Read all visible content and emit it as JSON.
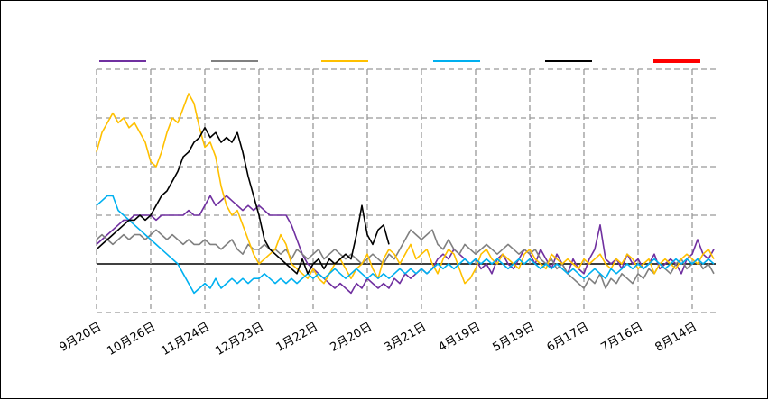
{
  "chart_data": {
    "type": "line",
    "categories": [
      "9月20日",
      null,
      null,
      null,
      null,
      null,
      null,
      null,
      null,
      null,
      "10月26日",
      null,
      null,
      null,
      null,
      null,
      null,
      null,
      null,
      null,
      "11月24日",
      null,
      null,
      null,
      null,
      null,
      null,
      null,
      null,
      null,
      "12月23日",
      null,
      null,
      null,
      null,
      null,
      null,
      null,
      null,
      null,
      "1月22日",
      null,
      null,
      null,
      null,
      null,
      null,
      null,
      null,
      null,
      "2月20日",
      null,
      null,
      null,
      null,
      null,
      null,
      null,
      null,
      null,
      "3月21日",
      null,
      null,
      null,
      null,
      null,
      null,
      null,
      null,
      null,
      "4月19日",
      null,
      null,
      null,
      null,
      null,
      null,
      null,
      null,
      null,
      "5月19日",
      null,
      null,
      null,
      null,
      null,
      null,
      null,
      null,
      null,
      "6月17日",
      null,
      null,
      null,
      null,
      null,
      null,
      null,
      null,
      null,
      "7月16日",
      null,
      null,
      null,
      null,
      null,
      null,
      null,
      null,
      null,
      "8月14日",
      null,
      null,
      null,
      null
    ],
    "series": [
      {
        "color": "#7030a0",
        "values": [
          0.4,
          0.5,
          0.6,
          0.7,
          0.8,
          0.9,
          0.9,
          1.0,
          1.0,
          1.0,
          1.0,
          0.9,
          1.0,
          1.0,
          1.0,
          1.0,
          1.0,
          1.1,
          1.0,
          1.0,
          1.2,
          1.4,
          1.2,
          1.3,
          1.4,
          1.3,
          1.2,
          1.1,
          1.2,
          1.1,
          1.2,
          1.1,
          1.0,
          1.0,
          1.0,
          1.0,
          0.8,
          0.5,
          0.2,
          0.0,
          -0.1,
          -0.2,
          -0.3,
          -0.4,
          -0.5,
          -0.4,
          -0.5,
          -0.6,
          -0.4,
          -0.5,
          -0.3,
          -0.4,
          -0.5,
          -0.4,
          -0.5,
          -0.3,
          -0.4,
          -0.2,
          -0.3,
          -0.2,
          -0.1,
          -0.2,
          -0.1,
          0.1,
          0.2,
          0.1,
          0.3,
          0.2,
          0.1,
          0.0,
          0.1,
          -0.1,
          0.0,
          -0.2,
          0.1,
          0.2,
          0.0,
          -0.1,
          0.1,
          0.3,
          0.2,
          0.0,
          0.3,
          0.1,
          -0.1,
          0.2,
          0.0,
          -0.2,
          0.1,
          -0.1,
          -0.2,
          0.1,
          0.3,
          0.8,
          0.1,
          0.0,
          0.1,
          -0.1,
          0.2,
          0.0,
          0.1,
          -0.1,
          0.0,
          0.2,
          -0.1,
          0.0,
          0.1,
          0.0,
          -0.2,
          0.1,
          0.2,
          0.5,
          0.2,
          0.1,
          0.3
        ]
      },
      {
        "color": "#808080",
        "values": [
          0.5,
          0.6,
          0.5,
          0.4,
          0.5,
          0.6,
          0.5,
          0.6,
          0.6,
          0.5,
          0.6,
          0.7,
          0.6,
          0.5,
          0.6,
          0.5,
          0.4,
          0.5,
          0.4,
          0.4,
          0.5,
          0.4,
          0.4,
          0.3,
          0.4,
          0.5,
          0.3,
          0.2,
          0.4,
          0.3,
          0.3,
          0.4,
          0.3,
          0.3,
          0.2,
          0.3,
          0.1,
          0.3,
          0.2,
          0.1,
          0.2,
          0.3,
          0.1,
          0.2,
          0.3,
          0.2,
          0.1,
          0.2,
          0.1,
          0.0,
          0.1,
          0.2,
          0.1,
          0.0,
          0.2,
          0.1,
          0.3,
          0.5,
          0.7,
          0.6,
          0.5,
          0.6,
          0.7,
          0.4,
          0.3,
          0.5,
          0.3,
          0.2,
          0.4,
          0.3,
          0.2,
          0.3,
          0.4,
          0.3,
          0.2,
          0.3,
          0.4,
          0.3,
          0.2,
          0.3,
          0.2,
          0.3,
          0.1,
          0.0,
          0.1,
          -0.1,
          0.0,
          -0.2,
          -0.3,
          -0.4,
          -0.5,
          -0.3,
          -0.4,
          -0.2,
          -0.5,
          -0.3,
          -0.4,
          -0.2,
          -0.3,
          -0.4,
          -0.2,
          -0.3,
          -0.1,
          -0.2,
          0.0,
          -0.1,
          -0.2,
          0.0,
          0.1,
          -0.1,
          0.0,
          0.1,
          -0.1,
          0.0,
          -0.2
        ]
      },
      {
        "color": "#ffc000",
        "values": [
          2.3,
          2.7,
          2.9,
          3.1,
          2.9,
          3.0,
          2.8,
          2.9,
          2.7,
          2.5,
          2.1,
          2.0,
          2.3,
          2.7,
          3.0,
          2.9,
          3.2,
          3.5,
          3.3,
          2.8,
          2.4,
          2.5,
          2.2,
          1.6,
          1.2,
          1.0,
          1.1,
          0.8,
          0.5,
          0.2,
          0.0,
          0.1,
          0.2,
          0.3,
          0.6,
          0.4,
          0.0,
          -0.1,
          -0.2,
          -0.3,
          -0.1,
          -0.3,
          -0.4,
          -0.2,
          0.0,
          0.1,
          -0.1,
          -0.3,
          -0.1,
          0.0,
          0.2,
          -0.1,
          -0.3,
          0.1,
          0.3,
          0.2,
          0.0,
          0.2,
          0.4,
          0.1,
          0.2,
          0.3,
          0.0,
          -0.2,
          0.1,
          0.3,
          0.2,
          -0.1,
          -0.4,
          -0.3,
          -0.1,
          0.2,
          0.3,
          0.1,
          0.0,
          0.2,
          0.1,
          0.0,
          -0.1,
          0.2,
          0.3,
          0.1,
          0.0,
          -0.1,
          0.2,
          0.1,
          0.0,
          0.1,
          0.0,
          -0.1,
          0.1,
          0.0,
          0.1,
          0.2,
          0.0,
          -0.1,
          0.1,
          0.0,
          0.2,
          0.1,
          -0.1,
          0.0,
          0.1,
          -0.2,
          0.0,
          0.1,
          0.0,
          -0.1,
          0.1,
          0.2,
          0.1,
          0.0,
          0.2,
          0.3,
          0.1
        ]
      },
      {
        "color": "#00b0f0",
        "values": [
          1.2,
          1.3,
          1.4,
          1.4,
          1.1,
          1.0,
          0.9,
          0.8,
          0.7,
          0.6,
          0.5,
          0.4,
          0.3,
          0.2,
          0.1,
          0.0,
          -0.2,
          -0.4,
          -0.6,
          -0.5,
          -0.4,
          -0.5,
          -0.3,
          -0.5,
          -0.4,
          -0.3,
          -0.4,
          -0.3,
          -0.4,
          -0.3,
          -0.3,
          -0.2,
          -0.3,
          -0.4,
          -0.3,
          -0.4,
          -0.3,
          -0.4,
          -0.3,
          -0.2,
          -0.3,
          -0.2,
          -0.3,
          -0.2,
          -0.1,
          -0.2,
          -0.3,
          -0.2,
          -0.1,
          -0.2,
          -0.3,
          -0.2,
          -0.3,
          -0.2,
          -0.3,
          -0.2,
          -0.1,
          -0.2,
          -0.1,
          -0.2,
          -0.1,
          -0.2,
          -0.1,
          0.0,
          -0.1,
          0.0,
          -0.1,
          0.0,
          0.1,
          0.0,
          0.1,
          0.0,
          0.1,
          0.0,
          0.1,
          0.0,
          -0.1,
          0.0,
          0.1,
          0.0,
          0.1,
          0.0,
          -0.1,
          0.0,
          -0.1,
          0.0,
          -0.1,
          -0.2,
          -0.1,
          -0.2,
          -0.3,
          -0.2,
          -0.1,
          -0.2,
          -0.3,
          -0.1,
          -0.2,
          -0.1,
          0.0,
          -0.1,
          0.0,
          -0.1,
          0.0,
          0.1,
          0.0,
          -0.1,
          0.0,
          0.1,
          0.0,
          0.1,
          0.0,
          0.1,
          0.0,
          0.1,
          0.0
        ]
      },
      {
        "color": "#000000",
        "values": [
          0.3,
          0.4,
          0.5,
          0.6,
          0.7,
          0.8,
          0.9,
          0.9,
          1.0,
          0.9,
          1.0,
          1.2,
          1.4,
          1.5,
          1.7,
          1.9,
          2.2,
          2.3,
          2.5,
          2.6,
          2.8,
          2.6,
          2.7,
          2.5,
          2.6,
          2.5,
          2.7,
          2.3,
          1.8,
          1.4,
          1.0,
          0.5,
          0.3,
          0.2,
          0.1,
          0.0,
          -0.1,
          -0.2,
          0.1,
          -0.2,
          0.0,
          0.1,
          -0.1,
          0.1,
          0.0,
          0.1,
          0.2,
          0.1,
          0.6,
          1.2,
          0.6,
          0.4,
          0.7,
          0.8,
          0.4,
          null,
          null,
          null,
          null,
          null,
          null,
          null,
          null,
          null,
          null,
          null,
          null,
          null,
          null,
          null,
          null,
          null,
          null,
          null,
          null,
          null,
          null,
          null,
          null,
          null,
          null,
          null,
          null,
          null,
          null,
          null,
          null,
          null,
          null,
          null,
          null,
          null,
          null,
          null,
          null,
          null,
          null,
          null,
          null,
          null,
          null,
          null,
          null,
          null,
          null,
          null,
          null,
          null,
          null,
          null,
          null,
          null,
          null,
          null,
          null
        ]
      },
      {
        "color": "#ff0000",
        "values": [
          null,
          null,
          null,
          null,
          null,
          null,
          null,
          null,
          null,
          null,
          null,
          null,
          null,
          null,
          null,
          null,
          null,
          null,
          null,
          null,
          null,
          null,
          null,
          null,
          null,
          null,
          null,
          null,
          null,
          null,
          null,
          null,
          null,
          null,
          null,
          null,
          null,
          null,
          null,
          null,
          null,
          null,
          null,
          null,
          null,
          null,
          null,
          null,
          null,
          null,
          null,
          null,
          null,
          null,
          null,
          null,
          null,
          null,
          null,
          null,
          null,
          null,
          null,
          null,
          null,
          null,
          null,
          null,
          null,
          null,
          null,
          null,
          null,
          null,
          null,
          null,
          null,
          null,
          null,
          null,
          null,
          null,
          null,
          null,
          null,
          null,
          null,
          null,
          null,
          null,
          null,
          null,
          null,
          null,
          null,
          null,
          null,
          null,
          null,
          null,
          null,
          null,
          null,
          null,
          null,
          null,
          null,
          null,
          null,
          null,
          null,
          null,
          null,
          null,
          null
        ]
      }
    ],
    "ylim": [
      -1,
      4
    ],
    "yticks": [
      -1,
      0,
      1,
      2,
      3,
      4
    ],
    "grid": true
  }
}
